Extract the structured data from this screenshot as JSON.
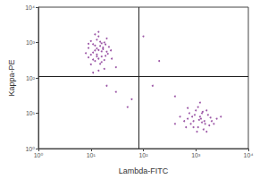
{
  "chart_data": {
    "type": "scatter",
    "xlabel": "Lambda-FITC",
    "ylabel": "Kappa-PE",
    "log": true,
    "grid": false,
    "color": "#8b3a96",
    "marker": "circle",
    "x": [
      12,
      15,
      10,
      18,
      14,
      9,
      20,
      13,
      16,
      11,
      17,
      8,
      22,
      14,
      12,
      19,
      10,
      15,
      13,
      16,
      24,
      9,
      11,
      18,
      14,
      12,
      20,
      16,
      10,
      13,
      15,
      17,
      11,
      19,
      14,
      12,
      21,
      9,
      16,
      13,
      25,
      30,
      14,
      11,
      18,
      900,
      1200,
      1500,
      700,
      1100,
      2000,
      1300,
      800,
      1700,
      1000,
      600,
      1400,
      2500,
      1150,
      950,
      1800,
      1300,
      750,
      1600,
      1050,
      2200,
      850,
      1250,
      1450,
      650,
      3000,
      1350,
      900,
      1900,
      1100,
      500,
      400,
      1600,
      1200,
      700,
      30,
      200,
      50,
      150,
      400,
      20,
      100,
      60
    ],
    "values": [
      600,
      800,
      450,
      1000,
      350,
      700,
      550,
      1200,
      400,
      900,
      650,
      500,
      750,
      1500,
      300,
      420,
      1100,
      250,
      680,
      950,
      600,
      380,
      520,
      320,
      2000,
      820,
      1300,
      560,
      240,
      460,
      1050,
      720,
      330,
      880,
      610,
      1700,
      480,
      920,
      280,
      400,
      350,
      200,
      160,
      140,
      180,
      6,
      8,
      5,
      7,
      4,
      6,
      10,
      5,
      9,
      12,
      6,
      3.5,
      7,
      6.5,
      9,
      4.5,
      5.5,
      10,
      12,
      3,
      5,
      8,
      7,
      6,
      4,
      8,
      11,
      4,
      7.5,
      15,
      8,
      5,
      3,
      20,
      14,
      40,
      300,
      15,
      60,
      30,
      60,
      1500,
      25
    ],
    "gates": {
      "x": 80,
      "y": 110
    },
    "xlim": [
      1,
      10000
    ],
    "ylim": [
      1,
      10000
    ],
    "xticks": [
      {
        "value": 1,
        "label": "10⁰"
      },
      {
        "value": 10,
        "label": "10¹"
      },
      {
        "value": 100,
        "label": "10²"
      },
      {
        "value": 1000,
        "label": "10³"
      },
      {
        "value": 10000,
        "label": "10⁴"
      }
    ],
    "yticks": [
      {
        "value": 1,
        "label": "10⁰"
      },
      {
        "value": 10,
        "label": "10¹"
      },
      {
        "value": 100,
        "label": "10²"
      },
      {
        "value": 1000,
        "label": "10³"
      },
      {
        "value": 10000,
        "label": "10⁴"
      }
    ]
  }
}
